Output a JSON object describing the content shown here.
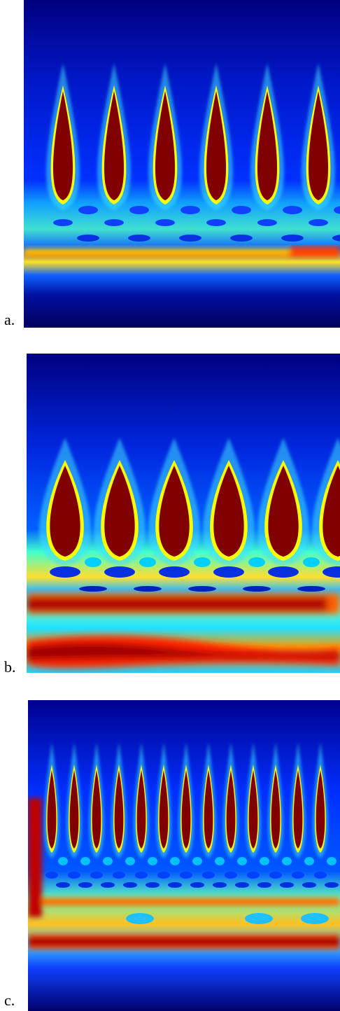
{
  "figure": {
    "colormap": "jet",
    "colors": {
      "deep_blue": "#00008f",
      "blue": "#0000ff",
      "cyan": "#00ffff",
      "yellow": "#ffff00",
      "red": "#ff0000",
      "dark_red": "#800000"
    },
    "panels": [
      {
        "label": "a.",
        "spike_count": 6
      },
      {
        "label": "b.",
        "spike_count": 6
      },
      {
        "label": "c.",
        "spike_count": 13
      }
    ]
  }
}
